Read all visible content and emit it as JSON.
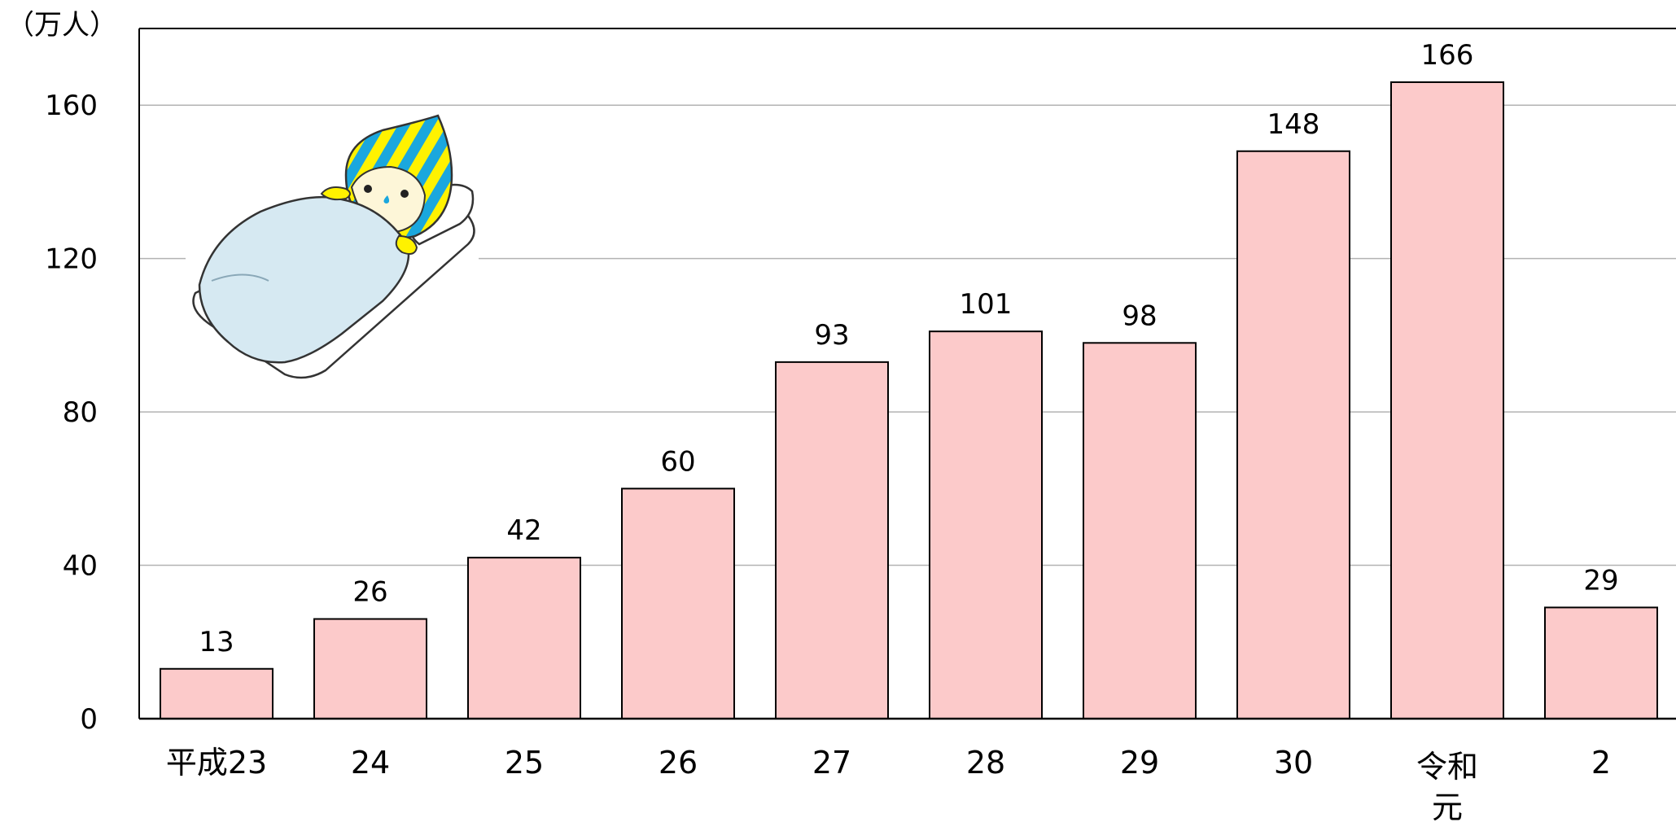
{
  "chart_data": {
    "type": "bar",
    "ylabel": "（万人）",
    "categories": [
      "平成23",
      "24",
      "25",
      "26",
      "27",
      "28",
      "29",
      "30",
      "令和元",
      "2"
    ],
    "values": [
      13,
      26,
      42,
      60,
      93,
      101,
      98,
      148,
      166,
      29
    ],
    "ylim": [
      0,
      180
    ],
    "yticks": [
      0,
      40,
      80,
      120,
      160
    ],
    "grid": true,
    "legend": "none"
  },
  "colors": {
    "bar_fill": "#fccaca",
    "bar_stroke": "#000000",
    "grid": "#b3b3b3",
    "axis": "#000000",
    "futon": "#d6e9f2",
    "mascot_yellow": "#fff200",
    "mascot_blue": "#1aa7de"
  },
  "illustration": {
    "icon": "mascot-sleeping-in-futon-icon"
  }
}
